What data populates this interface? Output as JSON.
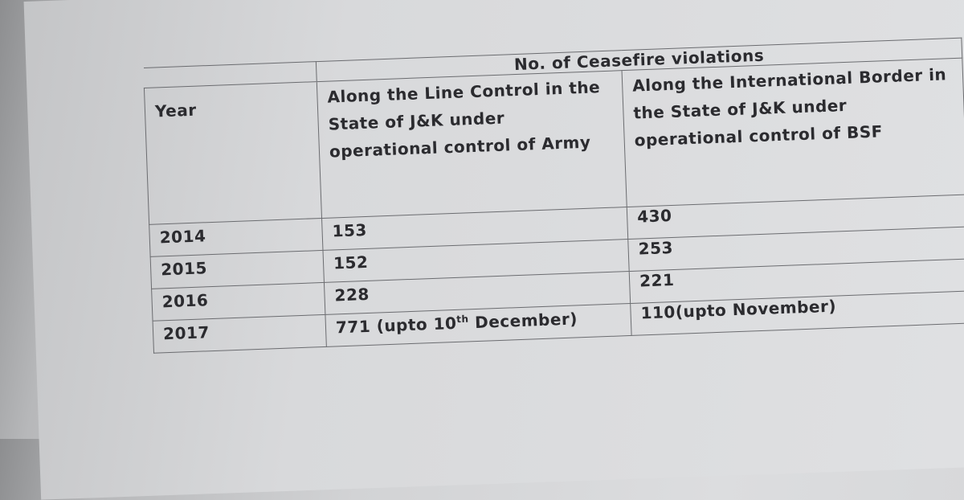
{
  "table": {
    "title": "No. of Ceasefire violations",
    "headers": {
      "year": "Year",
      "loc": "Along the Line Control in the State of J&K under operational control of Army",
      "ib": "Along the International Border in the State of J&K under operational control of BSF"
    },
    "rows": [
      {
        "year": "2014",
        "loc": "153",
        "ib": "430"
      },
      {
        "year": "2015",
        "loc": "152",
        "ib": "253"
      },
      {
        "year": "2016",
        "loc": "228",
        "ib": "221"
      },
      {
        "year": "2017",
        "loc": "771 (upto 10",
        "loc_sup": "th",
        "loc_tail": " December)",
        "ib": "110(upto November)"
      }
    ]
  }
}
